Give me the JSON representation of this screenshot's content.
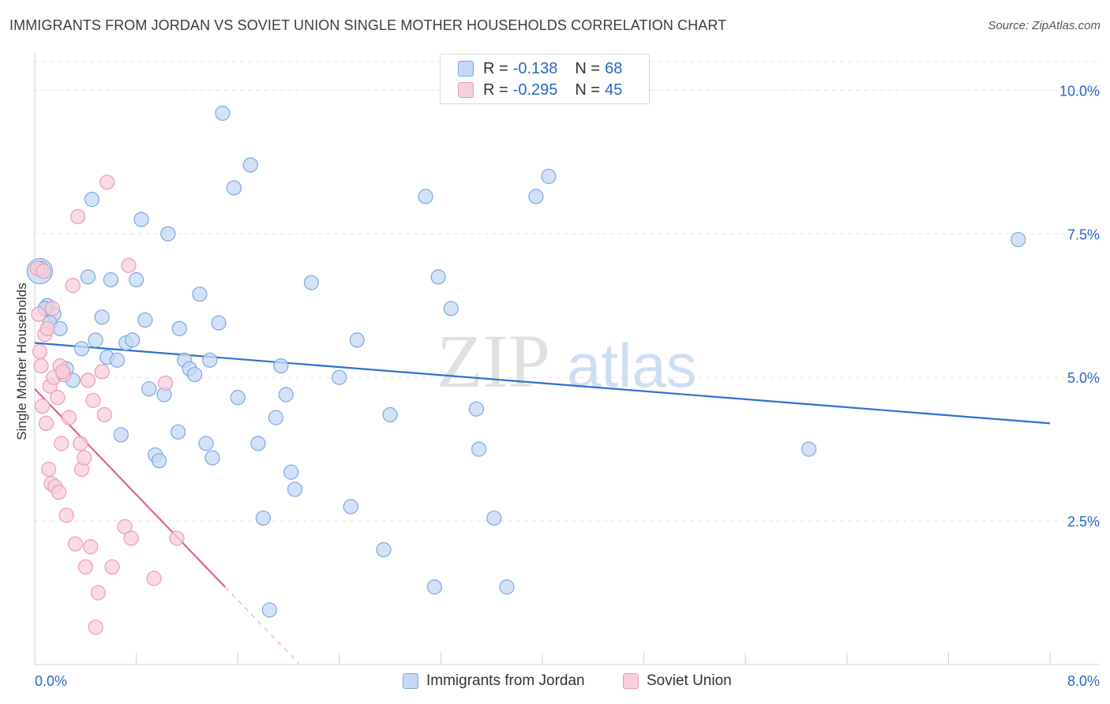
{
  "chart_data": {
    "type": "scatter",
    "title": "IMMIGRANTS FROM JORDAN VS SOVIET UNION SINGLE MOTHER HOUSEHOLDS CORRELATION CHART",
    "source": "Source: ZipAtlas.com",
    "ylabel": "Single Mother Households",
    "xlabel": "",
    "xlim": [
      0,
      8
    ],
    "ylim": [
      0,
      10.5
    ],
    "x_tick_labels": {
      "min": "0.0%",
      "max": "8.0%"
    },
    "y_ticks": [
      {
        "value": 2.5,
        "label": "2.5%"
      },
      {
        "value": 5.0,
        "label": "5.0%"
      },
      {
        "value": 7.5,
        "label": "7.5%"
      },
      {
        "value": 10.0,
        "label": "10.0%"
      }
    ],
    "watermark": {
      "zip": "ZIP",
      "atlas": "atlas"
    },
    "legend": [
      {
        "r_label": "R =",
        "r_value": "-0.138",
        "n_label": "N =",
        "n_value": "68"
      },
      {
        "r_label": "R =",
        "r_value": "-0.295",
        "n_label": "N =",
        "n_value": "45"
      }
    ],
    "series": [
      {
        "name": "Immigrants from Jordan",
        "color": "#7ba7e0",
        "fill": "#c5d8f4",
        "line_color": "#2f6fcf",
        "trend": {
          "x0": 0.0,
          "y0": 5.6,
          "x1": 8.0,
          "y1": 4.2
        },
        "points": [
          {
            "x": 0.04,
            "y": 6.85,
            "s": 2
          },
          {
            "x": 0.1,
            "y": 6.25,
            "s": 1
          },
          {
            "x": 0.15,
            "y": 6.1,
            "s": 1
          },
          {
            "x": 0.12,
            "y": 5.95,
            "s": 1
          },
          {
            "x": 0.2,
            "y": 5.85,
            "s": 1
          },
          {
            "x": 0.25,
            "y": 5.15,
            "s": 1
          },
          {
            "x": 0.3,
            "y": 4.95,
            "s": 1
          },
          {
            "x": 0.37,
            "y": 5.5,
            "s": 1
          },
          {
            "x": 0.42,
            "y": 6.75,
            "s": 1
          },
          {
            "x": 0.45,
            "y": 8.1,
            "s": 1
          },
          {
            "x": 0.48,
            "y": 5.65,
            "s": 1
          },
          {
            "x": 0.53,
            "y": 6.05,
            "s": 1
          },
          {
            "x": 0.57,
            "y": 5.35,
            "s": 1
          },
          {
            "x": 0.6,
            "y": 6.7,
            "s": 1
          },
          {
            "x": 0.65,
            "y": 5.3,
            "s": 1
          },
          {
            "x": 0.68,
            "y": 4.0,
            "s": 1
          },
          {
            "x": 0.72,
            "y": 5.6,
            "s": 1
          },
          {
            "x": 0.77,
            "y": 5.65,
            "s": 1
          },
          {
            "x": 0.8,
            "y": 6.7,
            "s": 1
          },
          {
            "x": 0.84,
            "y": 7.75,
            "s": 1
          },
          {
            "x": 0.87,
            "y": 6.0,
            "s": 1
          },
          {
            "x": 0.9,
            "y": 4.8,
            "s": 1
          },
          {
            "x": 0.95,
            "y": 3.65,
            "s": 1
          },
          {
            "x": 0.98,
            "y": 3.55,
            "s": 1
          },
          {
            "x": 1.02,
            "y": 4.7,
            "s": 1
          },
          {
            "x": 1.05,
            "y": 7.5,
            "s": 1
          },
          {
            "x": 1.13,
            "y": 4.05,
            "s": 1
          },
          {
            "x": 1.14,
            "y": 5.85,
            "s": 1
          },
          {
            "x": 1.18,
            "y": 5.3,
            "s": 1
          },
          {
            "x": 1.22,
            "y": 5.15,
            "s": 1
          },
          {
            "x": 1.26,
            "y": 5.05,
            "s": 1
          },
          {
            "x": 1.3,
            "y": 6.45,
            "s": 1
          },
          {
            "x": 1.35,
            "y": 3.85,
            "s": 1
          },
          {
            "x": 1.38,
            "y": 5.3,
            "s": 1
          },
          {
            "x": 1.4,
            "y": 3.6,
            "s": 1
          },
          {
            "x": 1.45,
            "y": 5.95,
            "s": 1
          },
          {
            "x": 1.48,
            "y": 9.6,
            "s": 1
          },
          {
            "x": 1.57,
            "y": 8.3,
            "s": 1
          },
          {
            "x": 1.6,
            "y": 4.65,
            "s": 1
          },
          {
            "x": 1.7,
            "y": 8.7,
            "s": 1
          },
          {
            "x": 1.76,
            "y": 3.85,
            "s": 1
          },
          {
            "x": 1.8,
            "y": 2.55,
            "s": 1
          },
          {
            "x": 1.85,
            "y": 0.95,
            "s": 1
          },
          {
            "x": 1.9,
            "y": 4.3,
            "s": 1
          },
          {
            "x": 1.94,
            "y": 5.2,
            "s": 1
          },
          {
            "x": 1.98,
            "y": 4.7,
            "s": 1
          },
          {
            "x": 2.02,
            "y": 3.35,
            "s": 1
          },
          {
            "x": 2.05,
            "y": 3.05,
            "s": 1
          },
          {
            "x": 2.18,
            "y": 6.65,
            "s": 1
          },
          {
            "x": 2.4,
            "y": 5.0,
            "s": 1
          },
          {
            "x": 2.49,
            "y": 2.75,
            "s": 1
          },
          {
            "x": 2.54,
            "y": 5.65,
            "s": 1
          },
          {
            "x": 2.75,
            "y": 2.0,
            "s": 1
          },
          {
            "x": 2.8,
            "y": 4.35,
            "s": 1
          },
          {
            "x": 3.08,
            "y": 8.15,
            "s": 1
          },
          {
            "x": 3.15,
            "y": 1.35,
            "s": 1
          },
          {
            "x": 3.18,
            "y": 6.75,
            "s": 1
          },
          {
            "x": 3.28,
            "y": 6.2,
            "s": 1
          },
          {
            "x": 3.48,
            "y": 4.45,
            "s": 1
          },
          {
            "x": 3.5,
            "y": 3.75,
            "s": 1
          },
          {
            "x": 3.62,
            "y": 2.55,
            "s": 1
          },
          {
            "x": 3.72,
            "y": 1.35,
            "s": 1
          },
          {
            "x": 3.95,
            "y": 8.15,
            "s": 1
          },
          {
            "x": 4.05,
            "y": 8.5,
            "s": 1
          },
          {
            "x": 6.1,
            "y": 3.75,
            "s": 1
          },
          {
            "x": 7.75,
            "y": 7.4,
            "s": 1
          },
          {
            "x": 0.05,
            "y": 6.9,
            "s": 1
          },
          {
            "x": 0.08,
            "y": 6.2,
            "s": 1
          }
        ]
      },
      {
        "name": "Soviet Union",
        "color": "#eb9bb7",
        "fill": "#f7cfdc",
        "line_color": "#e0608f",
        "trend": {
          "x0": 0.0,
          "y0": 4.8,
          "x1": 1.5,
          "y1": 1.35
        },
        "trend_dash": {
          "x0": 1.5,
          "y0": 1.35,
          "x1": 2.08,
          "y1": 0.02
        },
        "points": [
          {
            "x": 0.02,
            "y": 6.9,
            "s": 1
          },
          {
            "x": 0.03,
            "y": 6.1,
            "s": 1
          },
          {
            "x": 0.04,
            "y": 5.45,
            "s": 1
          },
          {
            "x": 0.05,
            "y": 5.2,
            "s": 1
          },
          {
            "x": 0.06,
            "y": 4.5,
            "s": 1
          },
          {
            "x": 0.08,
            "y": 5.75,
            "s": 1
          },
          {
            "x": 0.09,
            "y": 4.2,
            "s": 1
          },
          {
            "x": 0.1,
            "y": 5.85,
            "s": 1
          },
          {
            "x": 0.11,
            "y": 3.4,
            "s": 1
          },
          {
            "x": 0.12,
            "y": 4.85,
            "s": 1
          },
          {
            "x": 0.13,
            "y": 3.15,
            "s": 1
          },
          {
            "x": 0.15,
            "y": 5.0,
            "s": 1
          },
          {
            "x": 0.16,
            "y": 3.1,
            "s": 1
          },
          {
            "x": 0.18,
            "y": 4.65,
            "s": 1
          },
          {
            "x": 0.19,
            "y": 3.0,
            "s": 1
          },
          {
            "x": 0.2,
            "y": 5.2,
            "s": 1
          },
          {
            "x": 0.21,
            "y": 3.85,
            "s": 1
          },
          {
            "x": 0.23,
            "y": 5.05,
            "s": 1
          },
          {
            "x": 0.25,
            "y": 2.6,
            "s": 1
          },
          {
            "x": 0.27,
            "y": 4.3,
            "s": 1
          },
          {
            "x": 0.3,
            "y": 6.6,
            "s": 1
          },
          {
            "x": 0.32,
            "y": 2.1,
            "s": 1
          },
          {
            "x": 0.34,
            "y": 7.8,
            "s": 1
          },
          {
            "x": 0.36,
            "y": 3.85,
            "s": 1
          },
          {
            "x": 0.37,
            "y": 3.4,
            "s": 1
          },
          {
            "x": 0.39,
            "y": 3.6,
            "s": 1
          },
          {
            "x": 0.4,
            "y": 1.7,
            "s": 1
          },
          {
            "x": 0.42,
            "y": 4.95,
            "s": 1
          },
          {
            "x": 0.44,
            "y": 2.05,
            "s": 1
          },
          {
            "x": 0.46,
            "y": 4.6,
            "s": 1
          },
          {
            "x": 0.48,
            "y": 0.65,
            "s": 1
          },
          {
            "x": 0.5,
            "y": 1.25,
            "s": 1
          },
          {
            "x": 0.53,
            "y": 5.1,
            "s": 1
          },
          {
            "x": 0.55,
            "y": 4.35,
            "s": 1
          },
          {
            "x": 0.57,
            "y": 8.4,
            "s": 1
          },
          {
            "x": 0.61,
            "y": 1.7,
            "s": 1
          },
          {
            "x": 0.71,
            "y": 2.4,
            "s": 1
          },
          {
            "x": 0.74,
            "y": 6.95,
            "s": 1
          },
          {
            "x": 0.76,
            "y": 2.2,
            "s": 1
          },
          {
            "x": 0.94,
            "y": 1.5,
            "s": 1
          },
          {
            "x": 1.03,
            "y": 4.9,
            "s": 1
          },
          {
            "x": 1.12,
            "y": 2.2,
            "s": 1
          },
          {
            "x": 0.07,
            "y": 6.85,
            "s": 1
          },
          {
            "x": 0.14,
            "y": 6.2,
            "s": 1
          },
          {
            "x": 0.22,
            "y": 5.1,
            "s": 1
          }
        ]
      }
    ]
  }
}
